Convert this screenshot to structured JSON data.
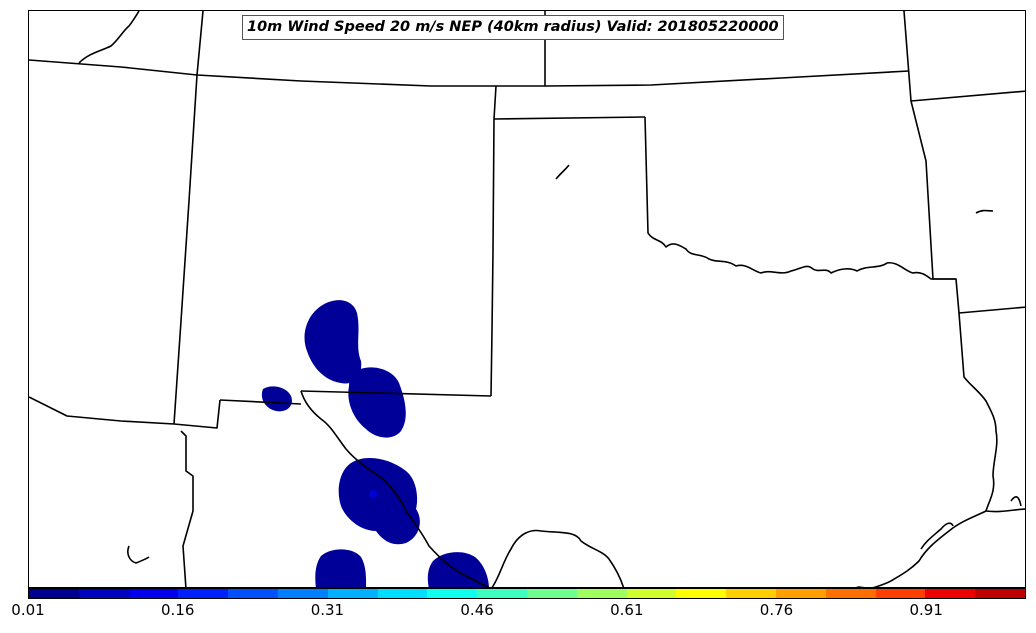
{
  "title": "10m Wind Speed 20 m/s NEP (40km radius) Valid: 201805220000",
  "colorbar": {
    "colors": [
      "#00008f",
      "#0000bf",
      "#0000ef",
      "#001fff",
      "#004fff",
      "#007fff",
      "#00afff",
      "#00dfff",
      "#0fffef",
      "#3fffbf",
      "#6fff8f",
      "#9fff5f",
      "#cfff2f",
      "#ffff00",
      "#ffcf00",
      "#ff9f00",
      "#ff6f00",
      "#ff3f00",
      "#ef0000",
      "#bf0000"
    ],
    "tick_labels": [
      "0.01",
      "0.16",
      "0.31",
      "0.46",
      "0.61",
      "0.76",
      "0.91"
    ]
  },
  "map": {
    "boundary_color": "#000000",
    "fill_color": "#000099",
    "max_color": "#0000d8",
    "region": "US Southern Plains: New Mexico, Texas, Oklahoma"
  }
}
